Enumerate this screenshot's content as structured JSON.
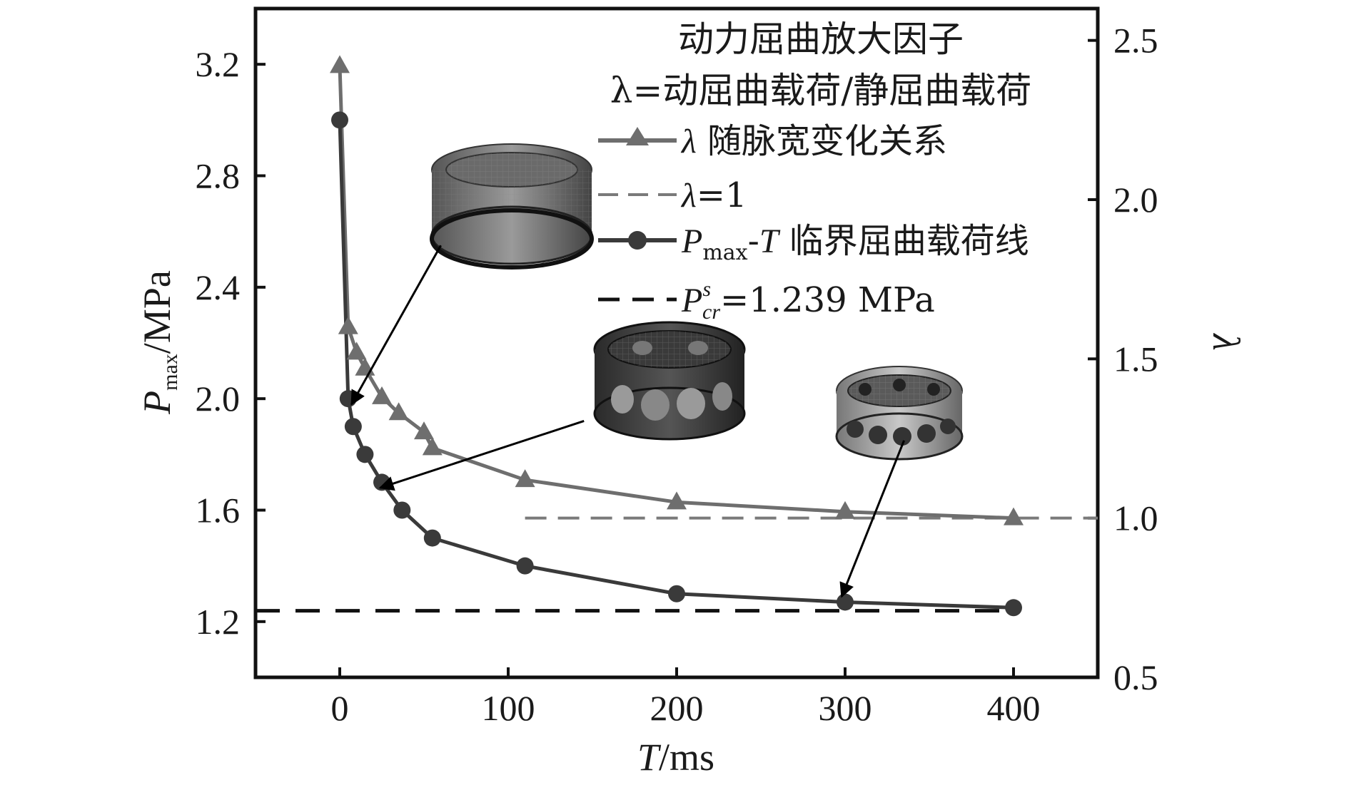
{
  "chart_data": {
    "type": "line",
    "x_axis": {
      "label_italic": "T",
      "label_rest": "/ms",
      "range": [
        -50,
        450
      ],
      "ticks": [
        0,
        100,
        200,
        300,
        400
      ]
    },
    "y_left_axis": {
      "label_italic": "P",
      "label_sub": "max",
      "label_rest": "/MPa",
      "range": [
        1.0,
        3.4
      ],
      "ticks": [
        1.2,
        1.6,
        2.0,
        2.4,
        2.8,
        3.2
      ]
    },
    "y_right_axis": {
      "label": "λ",
      "range": [
        0.5,
        2.6
      ],
      "ticks": [
        0.5,
        1.0,
        1.5,
        2.0,
        2.5
      ]
    },
    "legend": {
      "title_line1": "动力屈曲放大因子",
      "title_line2": "λ=动屈曲载荷/静屈曲载荷",
      "entries": {
        "lambda_curve": {
          "prefix": "λ",
          "text": " 随脉宽变化关系"
        },
        "lambda_one": {
          "prefix": "λ",
          "text": "=1"
        },
        "pmax_curve": {
          "p": "P",
          "sub": "max",
          "dash": "-",
          "t": "T",
          "text": " 临界屈曲载荷线"
        },
        "static_line": {
          "p": "P",
          "sup": "s",
          "sub": "cr",
          "text": "=1.239 MPa"
        }
      }
    },
    "series": [
      {
        "key": "lambda_curve",
        "axis": "right",
        "marker": "triangle",
        "color": "#6e6e6e",
        "x": [
          0,
          5,
          10,
          15,
          25,
          35,
          50,
          55,
          110,
          200,
          300,
          400
        ],
        "y": [
          2.42,
          1.6,
          1.52,
          1.47,
          1.38,
          1.33,
          1.27,
          1.22,
          1.12,
          1.05,
          1.02,
          1.0
        ]
      },
      {
        "key": "pmax_curve",
        "axis": "left",
        "marker": "circle",
        "color": "#3a3a3a",
        "x": [
          0,
          5,
          8,
          15,
          25,
          37,
          55,
          110,
          200,
          300,
          400
        ],
        "y": [
          3.0,
          2.0,
          1.9,
          1.8,
          1.7,
          1.6,
          1.5,
          1.4,
          1.3,
          1.27,
          1.25
        ]
      }
    ],
    "reference_lines": [
      {
        "key": "lambda_one",
        "axis": "right",
        "value": 1.0,
        "x_from": 110,
        "x_to": 450,
        "color": "#7a7a7a"
      },
      {
        "key": "static_line",
        "axis": "left",
        "value": 1.239,
        "x_from": -50,
        "x_to": 400,
        "color": "#111111"
      }
    ],
    "annotations": [
      {
        "name": "mode-shape-ring-1",
        "from": [
          60,
          2.55
        ],
        "to": [
          7,
          1.98
        ]
      },
      {
        "name": "mode-shape-ring-2",
        "from": [
          145,
          1.92
        ],
        "to": [
          24,
          1.68
        ]
      },
      {
        "name": "mode-shape-ring-3",
        "from": [
          335,
          1.85
        ],
        "to": [
          298,
          1.29
        ]
      }
    ]
  }
}
